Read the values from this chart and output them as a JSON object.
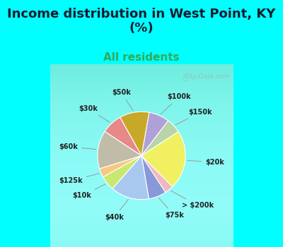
{
  "title": "Income distribution in West Point, KY\n(%)",
  "subtitle": "All residents",
  "title_fontsize": 13,
  "subtitle_fontsize": 11,
  "title_color": "#1a1a2e",
  "subtitle_color": "#33aa55",
  "bg_top": "#00FFFF",
  "watermark": "City-Data.com",
  "pie_slices": [
    {
      "label": "$100k",
      "value": 7,
      "color": "#b0a0d8"
    },
    {
      "label": "$150k",
      "value": 5,
      "color": "#b8d4a8"
    },
    {
      "label": "$20k",
      "value": 20,
      "color": "#f0f060"
    },
    {
      "label": "> $200k",
      "value": 3,
      "color": "#f0b8c0"
    },
    {
      "label": "$75k",
      "value": 6,
      "color": "#8898d8"
    },
    {
      "label": "$40k",
      "value": 13,
      "color": "#a8c8f0"
    },
    {
      "label": "$10k",
      "value": 5,
      "color": "#c8e870"
    },
    {
      "label": "$125k",
      "value": 3,
      "color": "#f8c880"
    },
    {
      "label": "$60k",
      "value": 13,
      "color": "#c0bca8"
    },
    {
      "label": "$30k",
      "value": 7,
      "color": "#e88888"
    },
    {
      "label": "$50k",
      "value": 10,
      "color": "#c8a828"
    }
  ]
}
